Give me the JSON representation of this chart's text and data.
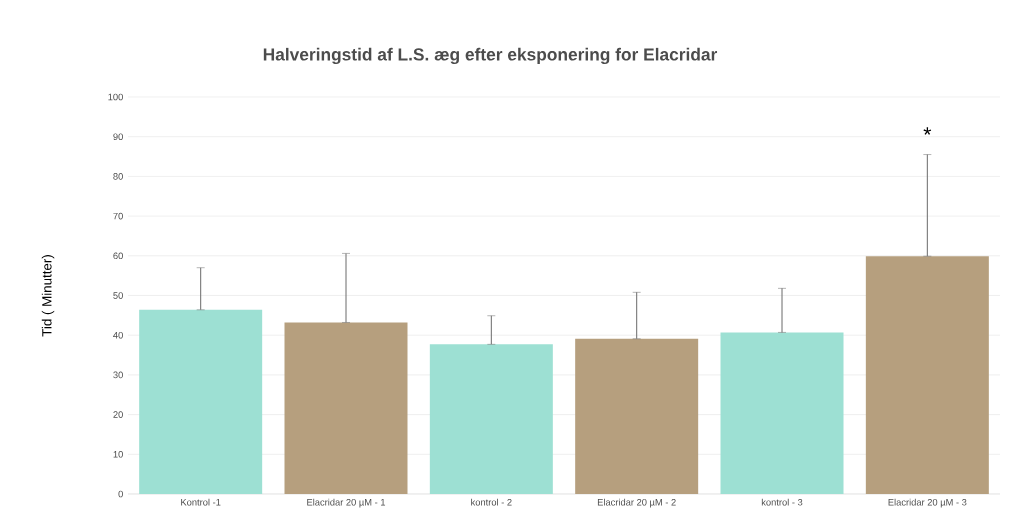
{
  "chart_data": {
    "type": "bar",
    "title": "Halveringstid af L.S. æg efter eksponering for Elacridar",
    "ylabel": "Tid ( Minutter)",
    "categories": [
      "Kontrol -1",
      "Elacridar 20 µM - 1",
      "kontrol - 2",
      "Elacridar 20 µM - 2",
      "kontrol - 3",
      "Elacridar 20 µM - 3"
    ],
    "values": [
      46.4,
      43.2,
      37.7,
      39.1,
      40.7,
      59.9
    ],
    "colors": [
      "#9de0d3",
      "#b69f7e",
      "#9de0d3",
      "#b69f7e",
      "#9de0d3",
      "#b69f7e"
    ],
    "errors": [
      [
        46.4,
        57.0
      ],
      [
        43.2,
        60.6
      ],
      [
        37.7,
        44.9
      ],
      [
        39.1,
        50.8
      ],
      [
        40.7,
        51.8
      ],
      [
        59.9,
        85.5
      ]
    ],
    "ylim": [
      0,
      100
    ],
    "yticks": [
      0,
      10,
      20,
      30,
      40,
      50,
      60,
      70,
      80,
      90,
      100
    ],
    "grid": "y",
    "annotations": [
      "*"
    ]
  }
}
